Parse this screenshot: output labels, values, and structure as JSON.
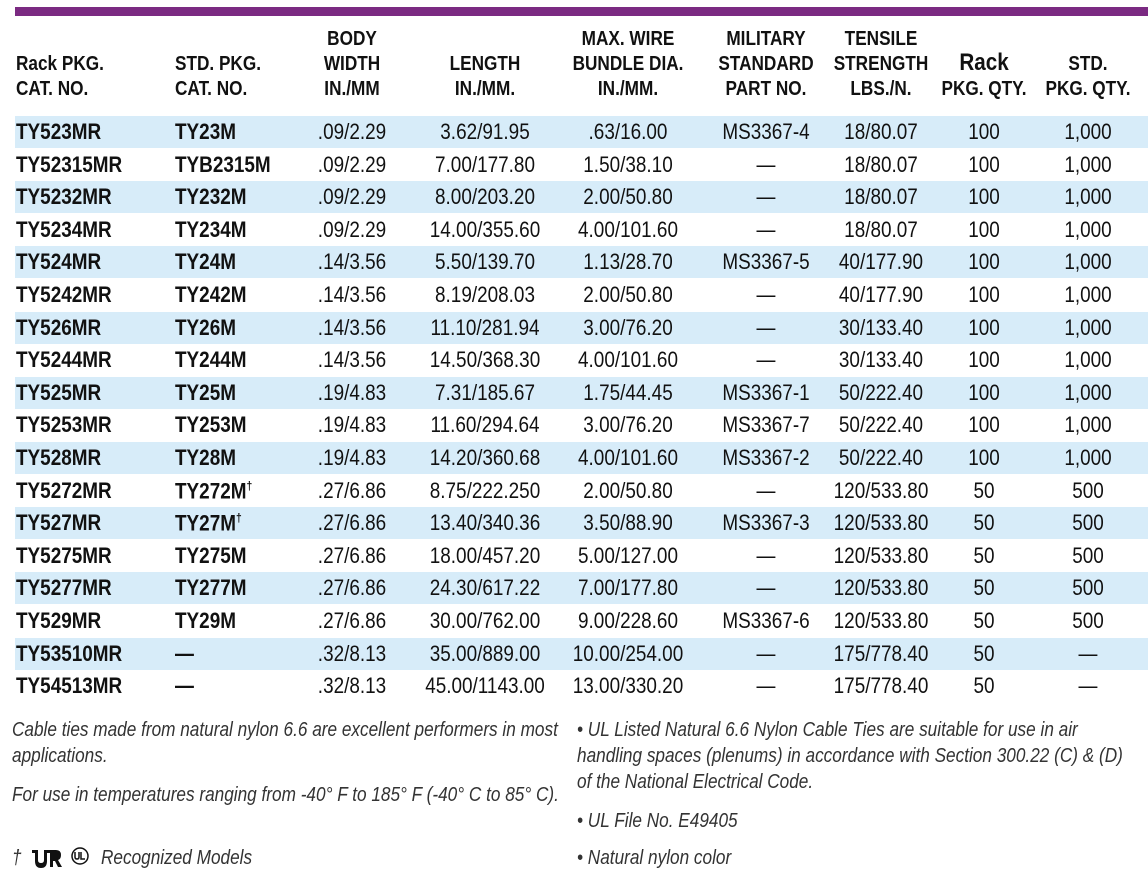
{
  "table": {
    "header": [
      [
        "Rack PKG.",
        "CAT. NO."
      ],
      [
        "STD. PKG.",
        "CAT. NO."
      ],
      [
        "BODY",
        "WIDTH",
        "IN./MM"
      ],
      [
        "LENGTH",
        "IN./MM."
      ],
      [
        "MAX. WIRE",
        "BUNDLE DIA.",
        "IN./MM."
      ],
      [
        "MILITARY",
        "STANDARD",
        "PART NO."
      ],
      [
        "TENSILE",
        "STRENGTH",
        "LBS./N."
      ],
      [
        "Rack",
        "PKG. QTY."
      ],
      [
        "STD.",
        "PKG. QTY."
      ]
    ],
    "rows": [
      [
        "TY523MR",
        "TY23M",
        ".09/2.29",
        "3.62/91.95",
        ".63/16.00",
        "MS3367-4",
        "18/80.07",
        "100",
        "1,000"
      ],
      [
        "TY52315MR",
        "TYB2315M",
        ".09/2.29",
        "7.00/177.80",
        "1.50/38.10",
        "—",
        "18/80.07",
        "100",
        "1,000"
      ],
      [
        "TY5232MR",
        "TY232M",
        ".09/2.29",
        "8.00/203.20",
        "2.00/50.80",
        "—",
        "18/80.07",
        "100",
        "1,000"
      ],
      [
        "TY5234MR",
        "TY234M",
        ".09/2.29",
        "14.00/355.60",
        "4.00/101.60",
        "—",
        "18/80.07",
        "100",
        "1,000"
      ],
      [
        "TY524MR",
        "TY24M",
        ".14/3.56",
        "5.50/139.70",
        "1.13/28.70",
        "MS3367-5",
        "40/177.90",
        "100",
        "1,000"
      ],
      [
        "TY5242MR",
        "TY242M",
        ".14/3.56",
        "8.19/208.03",
        "2.00/50.80",
        "—",
        "40/177.90",
        "100",
        "1,000"
      ],
      [
        "TY526MR",
        "TY26M",
        ".14/3.56",
        "11.10/281.94",
        "3.00/76.20",
        "—",
        "30/133.40",
        "100",
        "1,000"
      ],
      [
        "TY5244MR",
        "TY244M",
        ".14/3.56",
        "14.50/368.30",
        "4.00/101.60",
        "—",
        "30/133.40",
        "100",
        "1,000"
      ],
      [
        "TY525MR",
        "TY25M",
        ".19/4.83",
        "7.31/185.67",
        "1.75/44.45",
        "MS3367-1",
        "50/222.40",
        "100",
        "1,000"
      ],
      [
        "TY5253MR",
        "TY253M",
        ".19/4.83",
        "11.60/294.64",
        "3.00/76.20",
        "MS3367-7",
        "50/222.40",
        "100",
        "1,000"
      ],
      [
        "TY528MR",
        "TY28M",
        ".19/4.83",
        "14.20/360.68",
        "4.00/101.60",
        "MS3367-2",
        "50/222.40",
        "100",
        "1,000"
      ],
      [
        "TY5272MR",
        {
          "text": "TY272M",
          "mark": "†"
        },
        ".27/6.86",
        "8.75/222.250",
        "2.00/50.80",
        "—",
        "120/533.80",
        "50",
        "500"
      ],
      [
        "TY527MR",
        {
          "text": "TY27M",
          "mark": "†"
        },
        ".27/6.86",
        "13.40/340.36",
        "3.50/88.90",
        "MS3367-3",
        "120/533.80",
        "50",
        "500"
      ],
      [
        "TY5275MR",
        "TY275M",
        ".27/6.86",
        "18.00/457.20",
        "5.00/127.00",
        "—",
        "120/533.80",
        "50",
        "500"
      ],
      [
        "TY5277MR",
        "TY277M",
        ".27/6.86",
        "24.30/617.22",
        "7.00/177.80",
        "—",
        "120/533.80",
        "50",
        "500"
      ],
      [
        "TY529MR",
        "TY29M",
        ".27/6.86",
        "30.00/762.00",
        "9.00/228.60",
        "MS3367-6",
        "120/533.80",
        "50",
        "500"
      ],
      [
        "TY53510MR",
        "—",
        ".32/8.13",
        "35.00/889.00",
        "10.00/254.00",
        "—",
        "175/778.40",
        "50",
        "—"
      ],
      [
        "TY54513MR",
        "—",
        ".32/8.13",
        "45.00/1143.00",
        "13.00/330.20",
        "—",
        "175/778.40",
        "50",
        "—"
      ]
    ]
  },
  "notes": {
    "left": [
      "Cable ties made from natural nylon 6.6 are excellent performers in most applications.",
      "For use in temperatures ranging from -40° F to 185° F (-40° C to 85° C)."
    ],
    "recognized": {
      "symbol": "†",
      "text": "Recognized Models"
    },
    "right": [
      "• UL Listed Natural 6.6 Nylon Cable Ties are suitable for use in air handling spaces (plenums) in accordance with Section 300.22 (C) & (D) of the National Electrical Code.",
      "• UL File No. E49405",
      "• Natural nylon color"
    ]
  }
}
